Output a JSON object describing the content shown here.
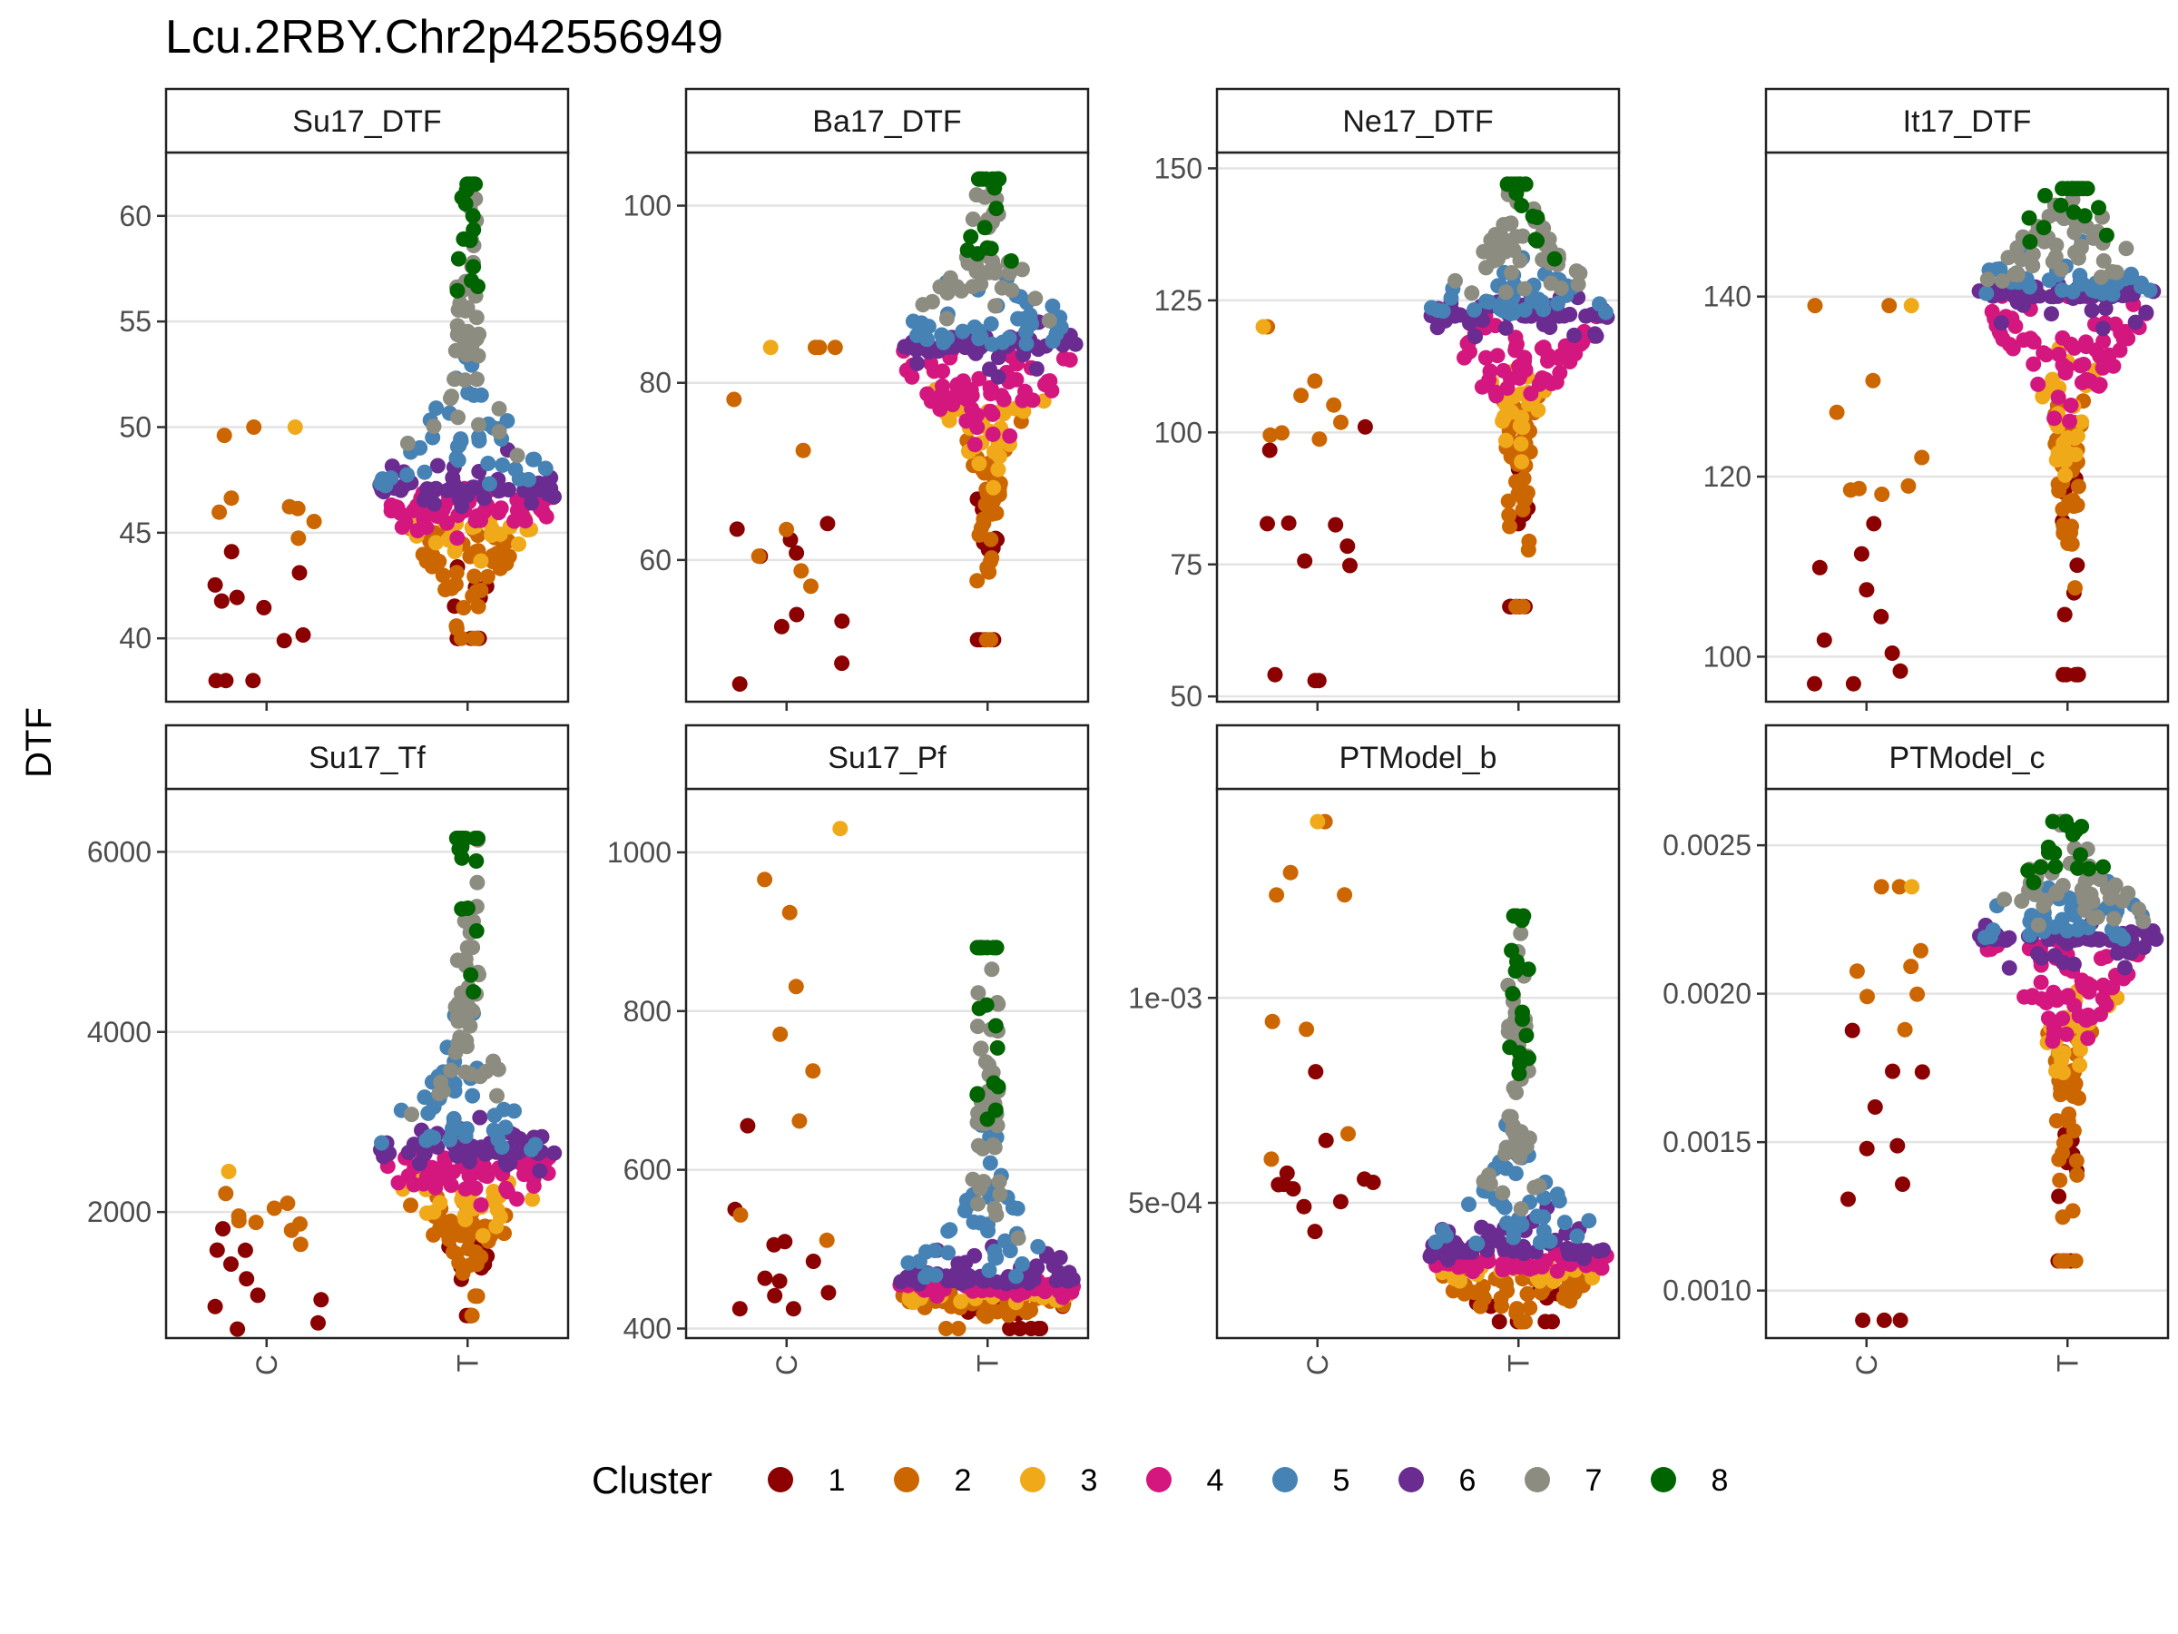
{
  "title": "Lcu.2RBY.Chr2p42556949",
  "ylabel": "DTF",
  "legend": {
    "title": "Cluster",
    "items": [
      {
        "label": "1",
        "color": "#8B0000"
      },
      {
        "label": "2",
        "color": "#CC6600"
      },
      {
        "label": "3",
        "color": "#F0A918"
      },
      {
        "label": "4",
        "color": "#D4177E"
      },
      {
        "label": "5",
        "color": "#4682B4"
      },
      {
        "label": "6",
        "color": "#6A2C91"
      },
      {
        "label": "7",
        "color": "#8C8C80"
      },
      {
        "label": "8",
        "color": "#006400"
      }
    ]
  },
  "chart_data": [
    {
      "type": "scatter",
      "panel": "Su17_DTF",
      "categories": [
        "C",
        "T"
      ],
      "ylim": [
        37,
        63
      ],
      "yticks": [
        "40",
        "45",
        "50",
        "55",
        "60"
      ],
      "groups": [
        {
          "category": "C",
          "n": 20,
          "min": 38,
          "max": 50,
          "median": 44.5,
          "clusters": {
            "1": 11,
            "2": 8,
            "3": 1
          }
        },
        {
          "category": "T",
          "n": 300,
          "min": 40,
          "max": 61.5,
          "median": 47,
          "clusters": {
            "1": 12,
            "2": 45,
            "3": 25,
            "4": 60,
            "5": 40,
            "6": 55,
            "7": 45,
            "8": 18
          }
        }
      ]
    },
    {
      "type": "scatter",
      "panel": "Ba17_DTF",
      "categories": [
        "C",
        "T"
      ],
      "ylim": [
        44,
        106
      ],
      "yticks": [
        "60",
        "80",
        "100"
      ],
      "groups": [
        {
          "category": "C",
          "n": 20,
          "min": 46,
          "max": 84,
          "median": 62,
          "clusters": {
            "1": 10,
            "2": 9,
            "3": 1
          }
        },
        {
          "category": "T",
          "n": 300,
          "min": 51,
          "max": 103,
          "median": 84,
          "clusters": {
            "1": 12,
            "2": 45,
            "3": 25,
            "4": 60,
            "5": 40,
            "6": 55,
            "7": 45,
            "8": 18
          }
        }
      ]
    },
    {
      "type": "scatter",
      "panel": "Ne17_DTF",
      "categories": [
        "C",
        "T"
      ],
      "ylim": [
        49,
        153
      ],
      "yticks": [
        "50",
        "75",
        "100",
        "125",
        "150"
      ],
      "groups": [
        {
          "category": "C",
          "n": 20,
          "min": 53,
          "max": 120,
          "median": 98,
          "clusters": {
            "1": 11,
            "2": 8,
            "3": 1
          }
        },
        {
          "category": "T",
          "n": 300,
          "min": 67,
          "max": 147,
          "median": 122,
          "clusters": {
            "1": 12,
            "2": 45,
            "3": 25,
            "4": 60,
            "5": 40,
            "6": 55,
            "7": 45,
            "8": 18
          }
        }
      ]
    },
    {
      "type": "scatter",
      "panel": "It17_DTF",
      "categories": [
        "C",
        "T"
      ],
      "ylim": [
        95,
        156
      ],
      "yticks": [
        "100",
        "120",
        "140"
      ],
      "groups": [
        {
          "category": "C",
          "n": 20,
          "min": 97,
          "max": 139,
          "median": 118,
          "clusters": {
            "1": 10,
            "2": 9,
            "3": 1
          }
        },
        {
          "category": "T",
          "n": 300,
          "min": 98,
          "max": 152,
          "median": 140,
          "clusters": {
            "1": 12,
            "2": 45,
            "3": 25,
            "4": 60,
            "5": 40,
            "6": 55,
            "7": 45,
            "8": 18
          }
        }
      ]
    },
    {
      "type": "scatter",
      "panel": "Su17_Tf",
      "categories": [
        "C",
        "T"
      ],
      "ylim": [
        600,
        6700
      ],
      "yticks": [
        "2000",
        "4000",
        "6000"
      ],
      "groups": [
        {
          "category": "C",
          "n": 20,
          "min": 700,
          "max": 2450,
          "median": 1600,
          "clusters": {
            "1": 10,
            "2": 9,
            "3": 1
          }
        },
        {
          "category": "T",
          "n": 300,
          "min": 850,
          "max": 6150,
          "median": 2650,
          "clusters": {
            "1": 12,
            "2": 45,
            "3": 25,
            "4": 60,
            "5": 40,
            "6": 55,
            "7": 45,
            "8": 18
          }
        }
      ]
    },
    {
      "type": "scatter",
      "panel": "Su17_Pf",
      "categories": [
        "C",
        "T"
      ],
      "ylim": [
        388,
        1080
      ],
      "yticks": [
        "400",
        "600",
        "800",
        "1000"
      ],
      "groups": [
        {
          "category": "C",
          "n": 20,
          "min": 425,
          "max": 1030,
          "median": 520,
          "clusters": {
            "1": 11,
            "2": 8,
            "3": 1
          }
        },
        {
          "category": "T",
          "n": 300,
          "min": 400,
          "max": 880,
          "median": 460,
          "clusters": {
            "1": 12,
            "2": 45,
            "3": 25,
            "4": 60,
            "5": 40,
            "6": 55,
            "7": 45,
            "8": 18
          }
        }
      ]
    },
    {
      "type": "scatter",
      "panel": "PTModel_b",
      "categories": [
        "C",
        "T"
      ],
      "ylim": [
        0.00017,
        0.00151
      ],
      "yticks": [
        "5e-04",
        "1e-03"
      ],
      "groups": [
        {
          "category": "C",
          "n": 20,
          "min": 0.00043,
          "max": 0.00143,
          "median": 0.00063,
          "clusters": {
            "1": 11,
            "2": 8,
            "3": 1
          }
        },
        {
          "category": "T",
          "n": 300,
          "min": 0.00021,
          "max": 0.0012,
          "median": 0.00038,
          "clusters": {
            "1": 12,
            "2": 45,
            "3": 25,
            "4": 60,
            "5": 40,
            "6": 55,
            "7": 45,
            "8": 18
          }
        }
      ]
    },
    {
      "type": "scatter",
      "panel": "PTModel_c",
      "categories": [
        "C",
        "T"
      ],
      "ylim": [
        0.00084,
        0.00269
      ],
      "yticks": [
        "0.0010",
        "0.0015",
        "0.0020",
        "0.0025"
      ],
      "groups": [
        {
          "category": "C",
          "n": 20,
          "min": 0.0009,
          "max": 0.00236,
          "median": 0.0019,
          "clusters": {
            "1": 11,
            "2": 8,
            "3": 1
          }
        },
        {
          "category": "T",
          "n": 300,
          "min": 0.0011,
          "max": 0.00258,
          "median": 0.00218,
          "clusters": {
            "1": 12,
            "2": 45,
            "3": 25,
            "4": 60,
            "5": 40,
            "6": 55,
            "7": 45,
            "8": 18
          }
        }
      ]
    }
  ]
}
